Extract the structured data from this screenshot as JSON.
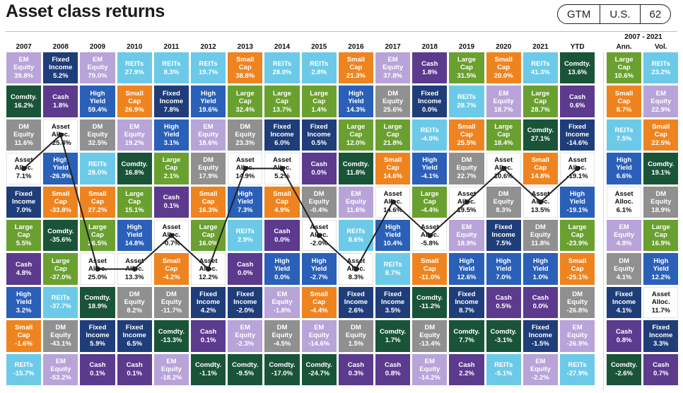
{
  "title": "Asset class returns",
  "badges": [
    "GTM",
    "U.S.",
    "62"
  ],
  "period_header": "2007 - 2021",
  "columns": [
    "2007",
    "2008",
    "2009",
    "2010",
    "2011",
    "2012",
    "2013",
    "2014",
    "2015",
    "2016",
    "2017",
    "2018",
    "2019",
    "2020",
    "2021",
    "YTD",
    "Ann.",
    "Vol."
  ],
  "colors": {
    "EM Equity": "#b8a4d8",
    "Fixed Income": "#1f3d79",
    "Comdty.": "#1a5438",
    "DM Equity": "#909090",
    "Asset Alloc.": "#ffffff",
    "High Yield": "#2a60b8",
    "REITs": "#6ccae8",
    "Small Cap": "#ee8420",
    "Large Cap": "#6aa030",
    "Cash": "#5c3a8e"
  },
  "chart_data": {
    "type": "table",
    "title": "Asset class returns",
    "columns": [
      "2007",
      "2008",
      "2009",
      "2010",
      "2011",
      "2012",
      "2013",
      "2014",
      "2015",
      "2016",
      "2017",
      "2018",
      "2019",
      "2020",
      "2021",
      "YTD",
      "Ann.",
      "Vol."
    ],
    "cells": [
      [
        [
          "EM Equity",
          "39.8%"
        ],
        [
          "Comdty.",
          "16.2%"
        ],
        [
          "DM Equity",
          "11.6%"
        ],
        [
          "Asset Alloc.",
          "7.1%"
        ],
        [
          "Fixed Income",
          "7.0%"
        ],
        [
          "Large Cap",
          "5.5%"
        ],
        [
          "Cash",
          "4.8%"
        ],
        [
          "High Yield",
          "3.2%"
        ],
        [
          "Small Cap",
          "-1.6%"
        ],
        [
          "REITs",
          "-15.7%"
        ]
      ],
      [
        [
          "Fixed Income",
          "5.2%"
        ],
        [
          "Cash",
          "1.8%"
        ],
        [
          "Asset Alloc.",
          "-25.4%"
        ],
        [
          "High Yield",
          "-26.9%"
        ],
        [
          "Small Cap",
          "-33.8%"
        ],
        [
          "Comdty.",
          "-35.6%"
        ],
        [
          "Large Cap",
          "-37.0%"
        ],
        [
          "REITs",
          "-37.7%"
        ],
        [
          "DM Equity",
          "-43.1%"
        ],
        [
          "EM Equity",
          "-53.2%"
        ]
      ],
      [
        [
          "EM Equity",
          "79.0%"
        ],
        [
          "High Yield",
          "59.4%"
        ],
        [
          "DM Equity",
          "32.5%"
        ],
        [
          "REITs",
          "28.0%"
        ],
        [
          "Small Cap",
          "27.2%"
        ],
        [
          "Large Cap",
          "26.5%"
        ],
        [
          "Asset Alloc.",
          "25.0%"
        ],
        [
          "Comdty.",
          "18.9%"
        ],
        [
          "Fixed Income",
          "5.9%"
        ],
        [
          "Cash",
          "0.1%"
        ]
      ],
      [
        [
          "REITs",
          "27.9%"
        ],
        [
          "Small Cap",
          "26.9%"
        ],
        [
          "EM Equity",
          "19.2%"
        ],
        [
          "Comdty.",
          "16.8%"
        ],
        [
          "Large Cap",
          "15.1%"
        ],
        [
          "High Yield",
          "14.8%"
        ],
        [
          "Asset Alloc.",
          "13.3%"
        ],
        [
          "DM Equity",
          "8.2%"
        ],
        [
          "Fixed Income",
          "6.5%"
        ],
        [
          "Cash",
          "0.1%"
        ]
      ],
      [
        [
          "REITs",
          "8.3%"
        ],
        [
          "Fixed Income",
          "7.8%"
        ],
        [
          "High Yield",
          "3.1%"
        ],
        [
          "Large Cap",
          "2.1%"
        ],
        [
          "Cash",
          "0.1%"
        ],
        [
          "Asset Alloc.",
          "-0.7%"
        ],
        [
          "Small Cap",
          "-4.2%"
        ],
        [
          "DM Equity",
          "-11.7%"
        ],
        [
          "Comdty.",
          "-13.3%"
        ],
        [
          "EM Equity",
          "-18.2%"
        ]
      ],
      [
        [
          "REITs",
          "19.7%"
        ],
        [
          "High Yield",
          "19.6%"
        ],
        [
          "EM Equity",
          "18.6%"
        ],
        [
          "DM Equity",
          "17.9%"
        ],
        [
          "Small Cap",
          "16.3%"
        ],
        [
          "Large Cap",
          "16.0%"
        ],
        [
          "Asset Alloc.",
          "12.2%"
        ],
        [
          "Fixed Income",
          "4.2%"
        ],
        [
          "Cash",
          "0.1%"
        ],
        [
          "Comdty.",
          "-1.1%"
        ]
      ],
      [
        [
          "Small Cap",
          "38.8%"
        ],
        [
          "Large Cap",
          "32.4%"
        ],
        [
          "DM Equity",
          "23.3%"
        ],
        [
          "Asset Alloc.",
          "14.9%"
        ],
        [
          "High Yield",
          "7.3%"
        ],
        [
          "REITs",
          "2.9%"
        ],
        [
          "Cash",
          "0.0%"
        ],
        [
          "Fixed Income",
          "-2.0%"
        ],
        [
          "EM Equity",
          "-2.3%"
        ],
        [
          "Comdty.",
          "-9.5%"
        ]
      ],
      [
        [
          "REITs",
          "28.0%"
        ],
        [
          "Large Cap",
          "13.7%"
        ],
        [
          "Fixed Income",
          "6.0%"
        ],
        [
          "Asset Alloc.",
          "5.2%"
        ],
        [
          "Small Cap",
          "4.9%"
        ],
        [
          "Cash",
          "0.0%"
        ],
        [
          "High Yield",
          "0.0%"
        ],
        [
          "EM Equity",
          "-1.8%"
        ],
        [
          "DM Equity",
          "-4.5%"
        ],
        [
          "Comdty.",
          "-17.0%"
        ]
      ],
      [
        [
          "REITs",
          "2.8%"
        ],
        [
          "Large Cap",
          "1.4%"
        ],
        [
          "Fixed Income",
          "0.5%"
        ],
        [
          "Cash",
          "0.0%"
        ],
        [
          "DM Equity",
          "-0.4%"
        ],
        [
          "Asset Alloc.",
          "-2.0%"
        ],
        [
          "High Yield",
          "-2.7%"
        ],
        [
          "Small Cap",
          "-4.4%"
        ],
        [
          "EM Equity",
          "-14.6%"
        ],
        [
          "Comdty.",
          "-24.7%"
        ]
      ],
      [
        [
          "Small Cap",
          "21.3%"
        ],
        [
          "High Yield",
          "14.3%"
        ],
        [
          "Large Cap",
          "12.0%"
        ],
        [
          "Comdty.",
          "11.8%"
        ],
        [
          "EM Equity",
          "11.6%"
        ],
        [
          "REITs",
          "8.6%"
        ],
        [
          "Asset Alloc.",
          "8.3%"
        ],
        [
          "Fixed Income",
          "2.6%"
        ],
        [
          "DM Equity",
          "1.5%"
        ],
        [
          "Cash",
          "0.3%"
        ]
      ],
      [
        [
          "EM Equity",
          "37.8%"
        ],
        [
          "DM Equity",
          "25.6%"
        ],
        [
          "Large Cap",
          "21.8%"
        ],
        [
          "Small Cap",
          "14.6%"
        ],
        [
          "Asset Alloc.",
          "14.6%"
        ],
        [
          "High Yield",
          "10.4%"
        ],
        [
          "REITs",
          "8.7%"
        ],
        [
          "Fixed Income",
          "3.5%"
        ],
        [
          "Comdty.",
          "1.7%"
        ],
        [
          "Cash",
          "0.8%"
        ]
      ],
      [
        [
          "Cash",
          "1.8%"
        ],
        [
          "Fixed Income",
          "0.0%"
        ],
        [
          "REITs",
          "-4.0%"
        ],
        [
          "High Yield",
          "-4.1%"
        ],
        [
          "Large Cap",
          "-4.4%"
        ],
        [
          "Asset Alloc.",
          "-5.8%"
        ],
        [
          "Small Cap",
          "-11.0%"
        ],
        [
          "Comdty.",
          "-11.2%"
        ],
        [
          "DM Equity",
          "-13.4%"
        ],
        [
          "EM Equity",
          "-14.2%"
        ]
      ],
      [
        [
          "Large Cap",
          "31.5%"
        ],
        [
          "REITs",
          "28.7%"
        ],
        [
          "Small Cap",
          "25.5%"
        ],
        [
          "DM Equity",
          "22.7%"
        ],
        [
          "Asset Alloc.",
          "19.5%"
        ],
        [
          "EM Equity",
          "18.9%"
        ],
        [
          "High Yield",
          "12.6%"
        ],
        [
          "Fixed Income",
          "8.7%"
        ],
        [
          "Comdty.",
          "7.7%"
        ],
        [
          "Cash",
          "2.2%"
        ]
      ],
      [
        [
          "Small Cap",
          "20.0%"
        ],
        [
          "EM Equity",
          "18.7%"
        ],
        [
          "Large Cap",
          "18.4%"
        ],
        [
          "Asset Alloc.",
          "10.6%"
        ],
        [
          "DM Equity",
          "8.3%"
        ],
        [
          "Fixed Income",
          "7.5%"
        ],
        [
          "High Yield",
          "7.0%"
        ],
        [
          "Cash",
          "0.5%"
        ],
        [
          "Comdty.",
          "-3.1%"
        ],
        [
          "REITs",
          "-5.1%"
        ]
      ],
      [
        [
          "REITs",
          "41.3%"
        ],
        [
          "Large Cap",
          "28.7%"
        ],
        [
          "Comdty.",
          "27.1%"
        ],
        [
          "Small Cap",
          "14.8%"
        ],
        [
          "Asset Alloc.",
          "13.5%"
        ],
        [
          "DM Equity",
          "11.8%"
        ],
        [
          "High Yield",
          "1.0%"
        ],
        [
          "Cash",
          "0.0%"
        ],
        [
          "Fixed Income",
          "-1.5%"
        ],
        [
          "EM Equity",
          "-2.2%"
        ]
      ],
      [
        [
          "Comdty.",
          "13.6%"
        ],
        [
          "Cash",
          "0.6%"
        ],
        [
          "Fixed Income",
          "-14.6%"
        ],
        [
          "Asset Alloc.",
          "-19.1%"
        ],
        [
          "High Yield",
          "-19.1%"
        ],
        [
          "Large Cap",
          "-23.9%"
        ],
        [
          "Small Cap",
          "-25.1%"
        ],
        [
          "DM Equity",
          "-26.8%"
        ],
        [
          "EM Equity",
          "-26.9%"
        ],
        [
          "REITs",
          "-27.9%"
        ]
      ],
      [
        [
          "Large Cap",
          "10.6%"
        ],
        [
          "Small Cap",
          "8.7%"
        ],
        [
          "REITs",
          "7.5%"
        ],
        [
          "High Yield",
          "6.6%"
        ],
        [
          "Asset Alloc.",
          "6.1%"
        ],
        [
          "EM Equity",
          "4.8%"
        ],
        [
          "DM Equity",
          "4.1%"
        ],
        [
          "Fixed Income",
          "4.1%"
        ],
        [
          "Cash",
          "0.8%"
        ],
        [
          "Comdty.",
          "-2.6%"
        ]
      ],
      [
        [
          "REITs",
          "23.2%"
        ],
        [
          "EM Equity",
          "22.9%"
        ],
        [
          "Small Cap",
          "22.5%"
        ],
        [
          "Comdty.",
          "19.1%"
        ],
        [
          "DM Equity",
          "18.9%"
        ],
        [
          "Large Cap",
          "16.9%"
        ],
        [
          "High Yield",
          "12.2%"
        ],
        [
          "Asset Alloc.",
          "11.7%"
        ],
        [
          "Fixed Income",
          "3.3%"
        ],
        [
          "Cash",
          "0.7%"
        ]
      ]
    ]
  }
}
